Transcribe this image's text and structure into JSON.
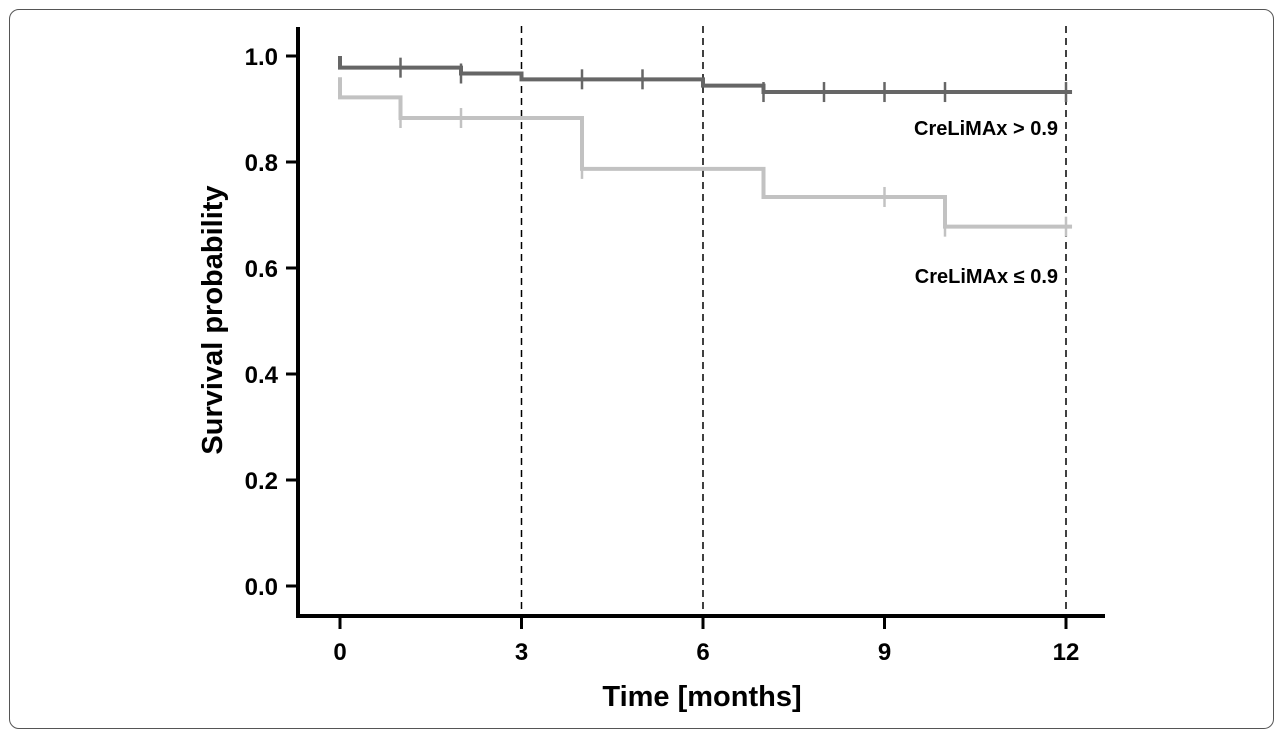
{
  "chart_data": {
    "type": "line",
    "step": true,
    "xlabel": "Time [months]",
    "ylabel": "Survival probability",
    "xlim": [
      0,
      12
    ],
    "ylim": [
      0,
      1
    ],
    "x_ticks": [
      0,
      3,
      6,
      9,
      12
    ],
    "y_ticks": [
      "0.0",
      "0.2",
      "0.4",
      "0.6",
      "0.8",
      "1.0"
    ],
    "reference_lines_x": [
      3,
      6,
      12
    ],
    "series": [
      {
        "name": "CreLiMAx > 0.9",
        "color": "#666666",
        "steps": [
          [
            0,
            1.0
          ],
          [
            0,
            0.978
          ],
          [
            2,
            0.967
          ],
          [
            3,
            0.956
          ],
          [
            6,
            0.944
          ],
          [
            7,
            0.932
          ],
          [
            12.1,
            0.932
          ]
        ],
        "censor_x": [
          1,
          2,
          4,
          5,
          7,
          8,
          9,
          10,
          12
        ]
      },
      {
        "name": "CreLiMAx ≤ 0.9",
        "color": "#c2c2c2",
        "steps": [
          [
            0,
            0.96
          ],
          [
            0,
            0.922
          ],
          [
            1,
            0.883
          ],
          [
            4,
            0.787
          ],
          [
            7,
            0.734
          ],
          [
            10,
            0.678
          ],
          [
            12.1,
            0.678
          ]
        ],
        "censor_x": [
          1,
          2,
          4,
          9,
          10,
          12
        ]
      }
    ]
  }
}
